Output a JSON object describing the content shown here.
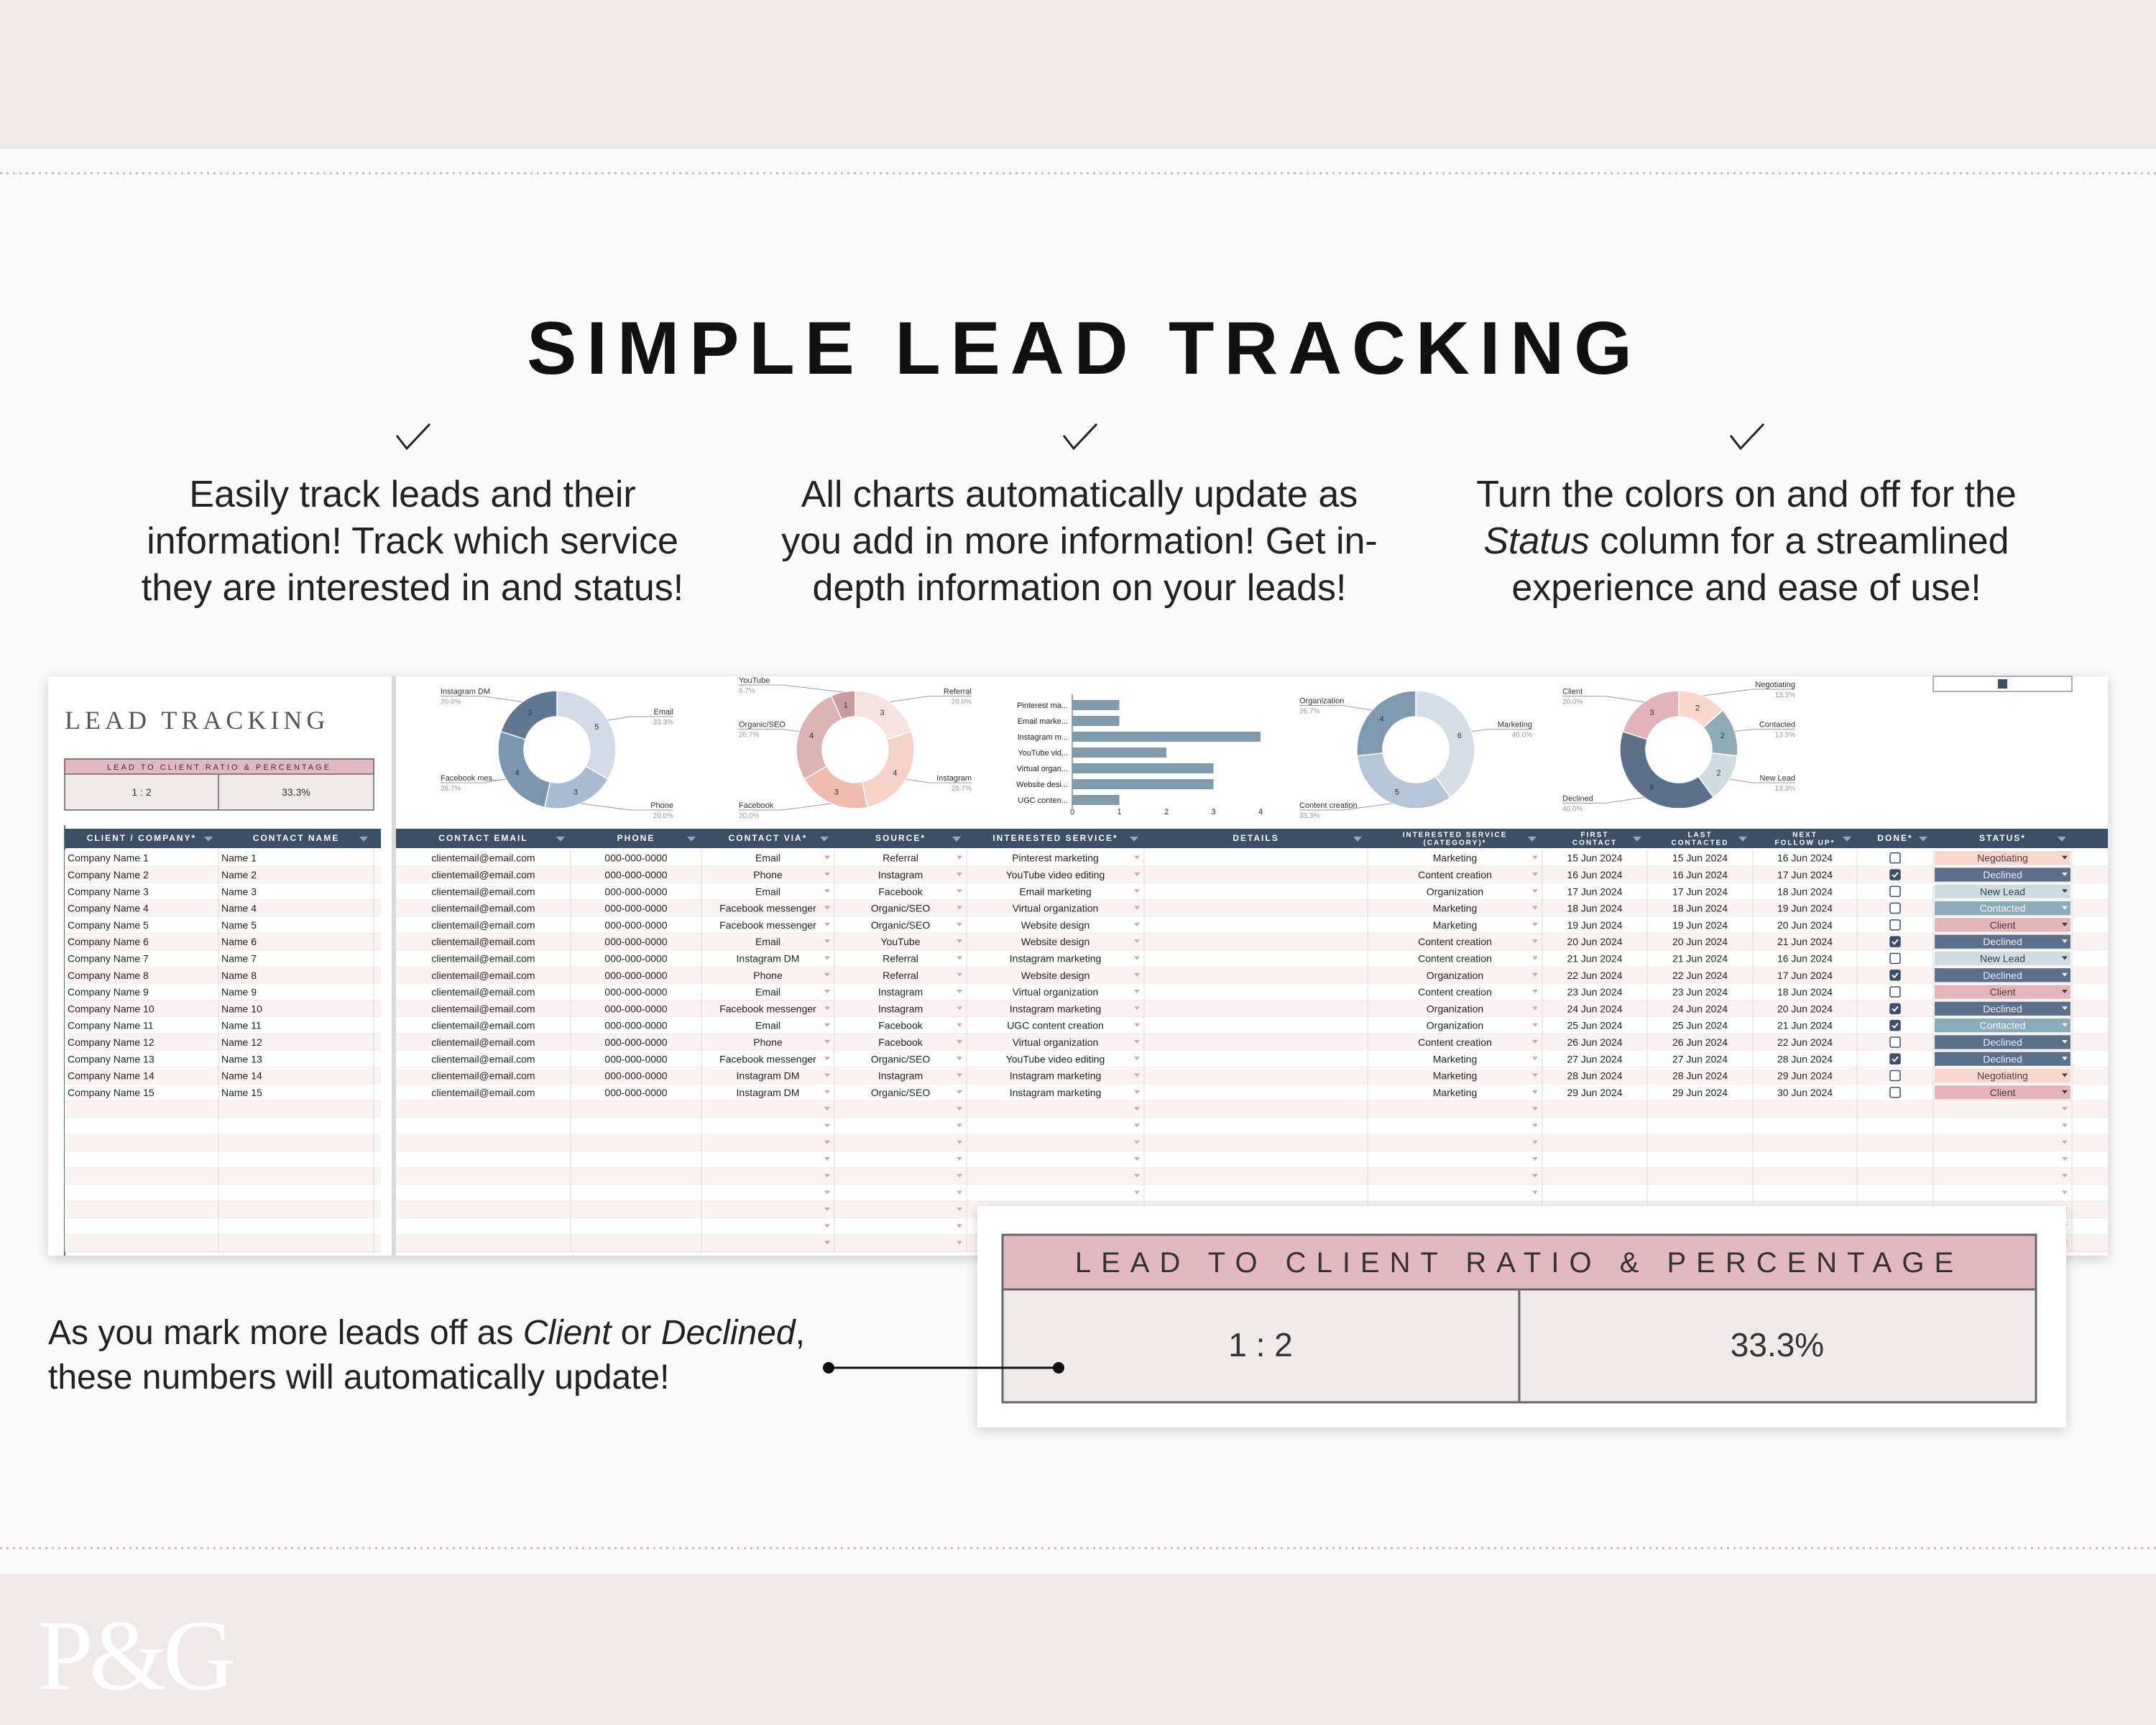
{
  "banner": {
    "title": "SIMPLE LEAD TRACKING",
    "features": [
      [
        [
          {
            "text": "Easily track leads and their"
          }
        ],
        [
          {
            "text": "information! Track which service"
          }
        ],
        [
          {
            "text": "they are interested in and status!"
          }
        ]
      ],
      [
        [
          {
            "text": "All charts automatically update as"
          }
        ],
        [
          {
            "text": "you add in more information! Get in-"
          }
        ],
        [
          {
            "text": "depth information on your leads!"
          }
        ]
      ],
      [
        [
          {
            "text": "Turn the colors on and off for the"
          }
        ],
        [
          {
            "text": "Status",
            "italic": true
          },
          {
            "text": " column for a streamlined"
          }
        ],
        [
          {
            "text": "experience and ease of use!"
          }
        ]
      ]
    ],
    "note": [
      [
        {
          "text": "As you mark more leads off as "
        },
        {
          "text": "Client",
          "italic": true
        },
        {
          "text": " or "
        },
        {
          "text": "Declined",
          "italic": true
        },
        {
          "text": ","
        }
      ],
      [
        {
          "text": "these numbers will automatically update!"
        }
      ]
    ],
    "logo": "P&G"
  },
  "sheet": {
    "title": "LEAD TRACKING",
    "ratio": {
      "header": "LEAD TO CLIENT RATIO & PERCENTAGE",
      "ratio": "1 : 2",
      "percentage": "33.3%"
    },
    "columns": [
      {
        "key": "client",
        "header": [
          "CLIENT / COMPANY*"
        ]
      },
      {
        "key": "contact",
        "header": [
          "CONTACT NAME"
        ]
      },
      {
        "key": "email",
        "header": [
          "CONTACT EMAIL"
        ]
      },
      {
        "key": "phone",
        "header": [
          "PHONE"
        ]
      },
      {
        "key": "via",
        "header": [
          "CONTACT VIA*"
        ]
      },
      {
        "key": "source",
        "header": [
          "SOURCE*"
        ]
      },
      {
        "key": "service",
        "header": [
          "INTERESTED SERVICE*"
        ]
      },
      {
        "key": "details",
        "header": [
          "DETAILS"
        ]
      },
      {
        "key": "category",
        "header": [
          "INTERESTED SERVICE",
          "(CATEGORY)*"
        ]
      },
      {
        "key": "first",
        "header": [
          "FIRST",
          "CONTACT"
        ]
      },
      {
        "key": "last",
        "header": [
          "LAST",
          "CONTACTED"
        ]
      },
      {
        "key": "next",
        "header": [
          "NEXT",
          "FOLLOW UP*"
        ]
      },
      {
        "key": "done",
        "header": [
          "DONE*"
        ]
      },
      {
        "key": "status",
        "header": [
          "STATUS*"
        ]
      }
    ],
    "status_colors": {
      "Negotiating": {
        "fill": "#f6d6cd",
        "text": "#4a3a3a"
      },
      "Declined": {
        "fill": "#5d7089",
        "text": "#e8edf2"
      },
      "New Lead": {
        "fill": "#cfdde3",
        "text": "#34424f"
      },
      "Contacted": {
        "fill": "#8eabb8",
        "text": "#f4f7f9"
      },
      "Client": {
        "fill": "#e6b5bc",
        "text": "#4a3a3a"
      }
    },
    "rows": [
      {
        "client": "Company Name 1",
        "contact": "Name 1",
        "email": "clientemail@email.com",
        "phone": "000-000-0000",
        "via": "Email",
        "source": "Referral",
        "service": "Pinterest marketing",
        "category": "Marketing",
        "first": "15 Jun 2024",
        "last": "15 Jun 2024",
        "next": "16 Jun 2024",
        "done": false,
        "status": "Negotiating"
      },
      {
        "client": "Company Name 2",
        "contact": "Name 2",
        "email": "clientemail@email.com",
        "phone": "000-000-0000",
        "via": "Phone",
        "source": "Instagram",
        "service": "YouTube video editing",
        "category": "Content creation",
        "first": "16 Jun 2024",
        "last": "16 Jun 2024",
        "next": "17 Jun 2024",
        "done": true,
        "status": "Declined"
      },
      {
        "client": "Company Name 3",
        "contact": "Name 3",
        "email": "clientemail@email.com",
        "phone": "000-000-0000",
        "via": "Email",
        "source": "Facebook",
        "service": "Email marketing",
        "category": "Organization",
        "first": "17 Jun 2024",
        "last": "17 Jun 2024",
        "next": "18 Jun 2024",
        "done": false,
        "status": "New Lead"
      },
      {
        "client": "Company Name 4",
        "contact": "Name 4",
        "email": "clientemail@email.com",
        "phone": "000-000-0000",
        "via": "Facebook messenger",
        "source": "Organic/SEO",
        "service": "Virtual organization",
        "category": "Marketing",
        "first": "18 Jun 2024",
        "last": "18 Jun 2024",
        "next": "19 Jun 2024",
        "done": false,
        "status": "Contacted"
      },
      {
        "client": "Company Name 5",
        "contact": "Name 5",
        "email": "clientemail@email.com",
        "phone": "000-000-0000",
        "via": "Facebook messenger",
        "source": "Organic/SEO",
        "service": "Website design",
        "category": "Marketing",
        "first": "19 Jun 2024",
        "last": "19 Jun 2024",
        "next": "20 Jun 2024",
        "done": false,
        "status": "Client"
      },
      {
        "client": "Company Name 6",
        "contact": "Name 6",
        "email": "clientemail@email.com",
        "phone": "000-000-0000",
        "via": "Email",
        "source": "YouTube",
        "service": "Website design",
        "category": "Content creation",
        "first": "20 Jun 2024",
        "last": "20 Jun 2024",
        "next": "21 Jun 2024",
        "done": true,
        "status": "Declined"
      },
      {
        "client": "Company Name 7",
        "contact": "Name 7",
        "email": "clientemail@email.com",
        "phone": "000-000-0000",
        "via": "Instagram DM",
        "source": "Referral",
        "service": "Instagram marketing",
        "category": "Content creation",
        "first": "21 Jun 2024",
        "last": "21 Jun 2024",
        "next": "16 Jun 2024",
        "done": false,
        "status": "New Lead"
      },
      {
        "client": "Company Name 8",
        "contact": "Name 8",
        "email": "clientemail@email.com",
        "phone": "000-000-0000",
        "via": "Phone",
        "source": "Referral",
        "service": "Website design",
        "category": "Organization",
        "first": "22 Jun 2024",
        "last": "22 Jun 2024",
        "next": "17 Jun 2024",
        "done": true,
        "status": "Declined"
      },
      {
        "client": "Company Name 9",
        "contact": "Name 9",
        "email": "clientemail@email.com",
        "phone": "000-000-0000",
        "via": "Email",
        "source": "Instagram",
        "service": "Virtual organization",
        "category": "Content creation",
        "first": "23 Jun 2024",
        "last": "23 Jun 2024",
        "next": "18 Jun 2024",
        "done": false,
        "status": "Client"
      },
      {
        "client": "Company Name 10",
        "contact": "Name 10",
        "email": "clientemail@email.com",
        "phone": "000-000-0000",
        "via": "Facebook messenger",
        "source": "Instagram",
        "service": "Instagram marketing",
        "category": "Organization",
        "first": "24 Jun 2024",
        "last": "24 Jun 2024",
        "next": "20 Jun 2024",
        "done": true,
        "status": "Declined"
      },
      {
        "client": "Company Name 11",
        "contact": "Name 11",
        "email": "clientemail@email.com",
        "phone": "000-000-0000",
        "via": "Email",
        "source": "Facebook",
        "service": "UGC content creation",
        "category": "Organization",
        "first": "25 Jun 2024",
        "last": "25 Jun 2024",
        "next": "21 Jun 2024",
        "done": true,
        "status": "Contacted"
      },
      {
        "client": "Company Name 12",
        "contact": "Name 12",
        "email": "clientemail@email.com",
        "phone": "000-000-0000",
        "via": "Phone",
        "source": "Facebook",
        "service": "Virtual organization",
        "category": "Content creation",
        "first": "26 Jun 2024",
        "last": "26 Jun 2024",
        "next": "22 Jun 2024",
        "done": false,
        "status": "Declined"
      },
      {
        "client": "Company Name 13",
        "contact": "Name 13",
        "email": "clientemail@email.com",
        "phone": "000-000-0000",
        "via": "Facebook messenger",
        "source": "Organic/SEO",
        "service": "YouTube video editing",
        "category": "Marketing",
        "first": "27 Jun 2024",
        "last": "27 Jun 2024",
        "next": "28 Jun 2024",
        "done": true,
        "status": "Declined"
      },
      {
        "client": "Company Name 14",
        "contact": "Name 14",
        "email": "clientemail@email.com",
        "phone": "000-000-0000",
        "via": "Instagram DM",
        "source": "Instagram",
        "service": "Instagram marketing",
        "category": "Marketing",
        "first": "28 Jun 2024",
        "last": "28 Jun 2024",
        "next": "29 Jun 2024",
        "done": false,
        "status": "Negotiating"
      },
      {
        "client": "Company Name 15",
        "contact": "Name 15",
        "email": "clientemail@email.com",
        "phone": "000-000-0000",
        "via": "Instagram DM",
        "source": "Organic/SEO",
        "service": "Instagram marketing",
        "category": "Marketing",
        "first": "29 Jun 2024",
        "last": "29 Jun 2024",
        "next": "30 Jun 2024",
        "done": false,
        "status": "Client"
      }
    ],
    "charts": [
      {
        "type": "donut",
        "categories": [
          "Email",
          "Phone",
          "Facebook mes...",
          "Instagram DM"
        ],
        "values": [
          5,
          3,
          4,
          3
        ],
        "percent_labels": [
          "33.3%",
          "20.0%",
          "26.7%",
          "20.0%"
        ],
        "colors": [
          "#d3dbe6",
          "#a9bccf",
          "#7d96b0",
          "#5f7790"
        ]
      },
      {
        "type": "donut",
        "categories": [
          "Referral",
          "Instagram",
          "Facebook",
          "Organic/SEO",
          "YouTube"
        ],
        "values": [
          3,
          4,
          3,
          4,
          1
        ],
        "percent_labels": [
          "20.0%",
          "26.7%",
          "20.0%",
          "26.7%",
          "6.7%"
        ],
        "colors": [
          "#f3e4e2",
          "#f6d1c7",
          "#efbcae",
          "#dcb3b3",
          "#c99a9e"
        ]
      },
      {
        "type": "bar",
        "categories": [
          "Pinterest ma...",
          "Email marke...",
          "Instagram m...",
          "YouTube vid...",
          "Virtual organ...",
          "Website desi...",
          "UGC conten..."
        ],
        "values": [
          1,
          1,
          4,
          2,
          3,
          3,
          1
        ],
        "xlim": [
          0,
          4
        ],
        "xticks": [
          0,
          1,
          2,
          3,
          4
        ],
        "color": "#7f9cad"
      },
      {
        "type": "donut",
        "categories": [
          "Marketing",
          "Content creation",
          "Organization"
        ],
        "values": [
          6,
          5,
          4
        ],
        "percent_labels": [
          "40.0%",
          "33.3%",
          "26.7%"
        ],
        "colors": [
          "#d5dde7",
          "#b7c6d6",
          "#7f99b2"
        ]
      },
      {
        "type": "donut",
        "categories": [
          "Negotiating",
          "Contacted",
          "New Lead",
          "Declined",
          "Client"
        ],
        "values": [
          2,
          2,
          2,
          6,
          3
        ],
        "percent_labels": [
          "13.3%",
          "13.3%",
          "13.3%",
          "40.0%",
          "20.0%"
        ],
        "colors": [
          "#f6d6cd",
          "#8eabb8",
          "#cfdde3",
          "#5d7089",
          "#e2b1b9"
        ]
      }
    ]
  }
}
